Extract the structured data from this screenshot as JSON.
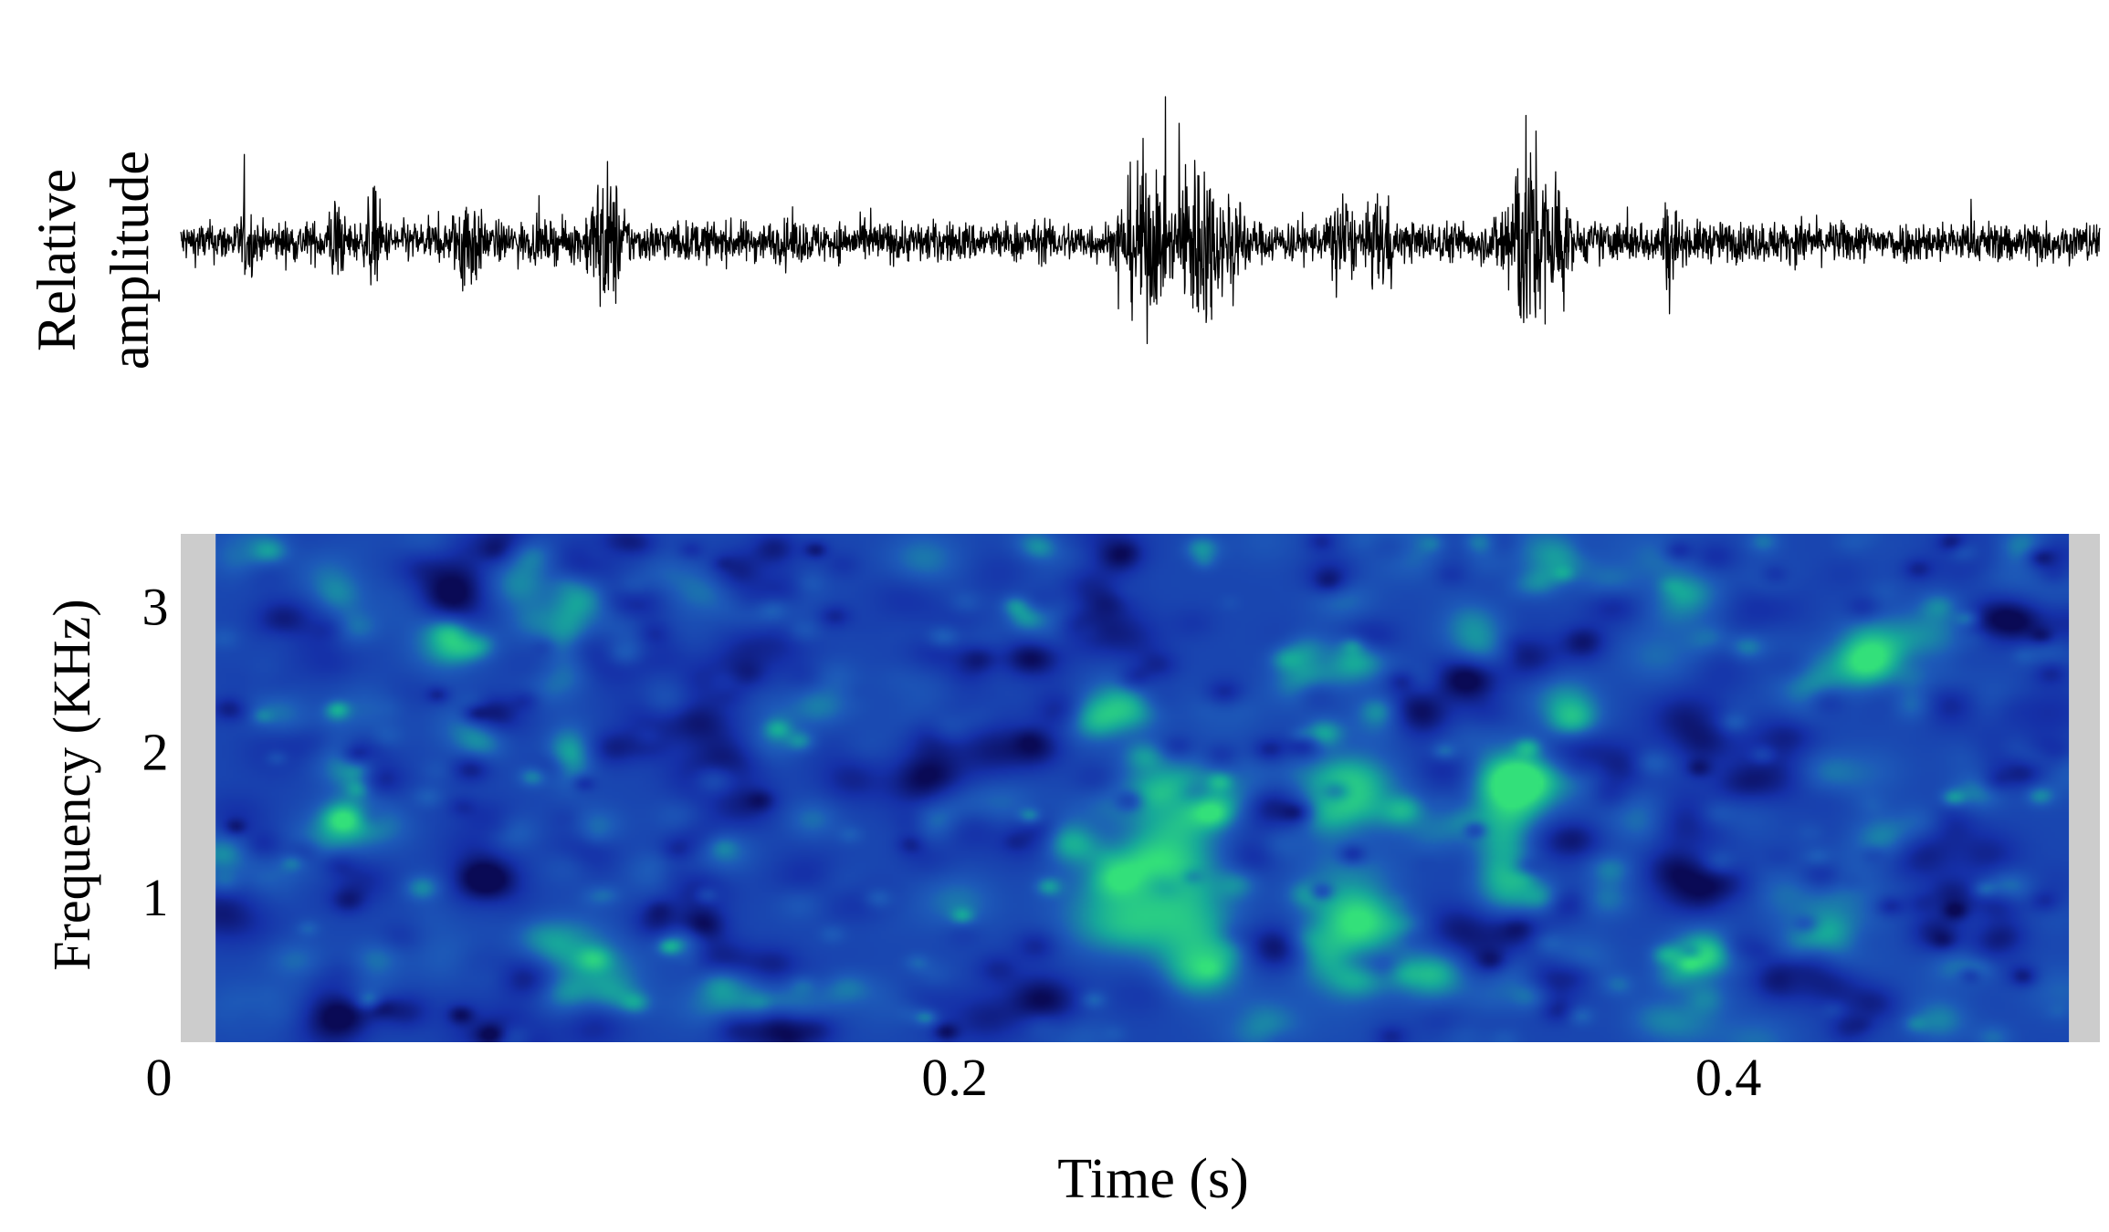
{
  "chart_data": [
    {
      "type": "line",
      "panel": "waveform",
      "ylabel_lines": [
        "Relative",
        "amplitude"
      ],
      "xlim": [
        0,
        0.496
      ],
      "ylim": [
        -1,
        1
      ],
      "axes_visible": false,
      "grid": false,
      "series": [
        {
          "color": "#000000",
          "envelope_baseline": 0.18,
          "events": [
            {
              "t": 0.017,
              "amp": 0.36,
              "width": 0.002
            },
            {
              "t": 0.04,
              "amp": 0.45,
              "width": 0.002
            },
            {
              "t": 0.05,
              "amp": 0.48,
              "width": 0.002
            },
            {
              "t": 0.074,
              "amp": 0.55,
              "width": 0.003
            },
            {
              "t": 0.11,
              "amp": 0.68,
              "width": 0.004
            },
            {
              "t": 0.158,
              "amp": 0.22,
              "width": 0.004
            },
            {
              "t": 0.249,
              "amp": 0.78,
              "width": 0.005
            },
            {
              "t": 0.263,
              "amp": 0.88,
              "width": 0.005
            },
            {
              "t": 0.272,
              "amp": 0.55,
              "width": 0.003
            },
            {
              "t": 0.3,
              "amp": 0.5,
              "width": 0.003
            },
            {
              "t": 0.31,
              "amp": 0.48,
              "width": 0.003
            },
            {
              "t": 0.348,
              "amp": 1.0,
              "width": 0.005
            },
            {
              "t": 0.355,
              "amp": 0.72,
              "width": 0.003
            },
            {
              "t": 0.385,
              "amp": 0.45,
              "width": 0.002
            },
            {
              "t": 0.42,
              "amp": 0.22,
              "width": 0.004
            },
            {
              "t": 0.48,
              "amp": 0.22,
              "width": 0.004
            }
          ]
        }
      ]
    },
    {
      "type": "heatmap",
      "panel": "spectrogram",
      "xlabel": "Time (s)",
      "ylabel": "Frequency (KHz)",
      "xlim": [
        0,
        0.496
      ],
      "ylim": [
        0,
        3.5
      ],
      "x_ticks": [
        0,
        0.2,
        0.4
      ],
      "x_tick_labels": [
        "0",
        "0.2",
        "0.4"
      ],
      "y_ticks": [
        1,
        2,
        3
      ],
      "y_tick_labels": [
        "1",
        "2",
        "3"
      ],
      "data_xlim": [
        0.009,
        0.488
      ],
      "padding_color": "#cccccc",
      "colormap": [
        "#0a0a55",
        "#1530a8",
        "#1d5ab8",
        "#17a89a",
        "#33e07a"
      ],
      "background_level": 0.38,
      "hotspots": [
        {
          "t": 0.1,
          "f": 1.97,
          "st": 0.004,
          "sf": 0.14,
          "level": 0.4
        },
        {
          "t": 0.1,
          "f": 2.8,
          "st": 0.004,
          "sf": 0.2,
          "level": 0.25
        },
        {
          "t": 0.066,
          "f": 2.8,
          "st": 0.006,
          "sf": 0.2,
          "level": 0.25
        },
        {
          "t": 0.15,
          "f": 0.25,
          "st": 0.014,
          "sf": 0.12,
          "level": 0.3
        },
        {
          "t": 0.24,
          "f": 0.9,
          "st": 0.01,
          "sf": 0.18,
          "level": 0.3
        },
        {
          "t": 0.258,
          "f": 1.7,
          "st": 0.012,
          "sf": 0.16,
          "level": 0.62
        },
        {
          "t": 0.256,
          "f": 1.25,
          "st": 0.008,
          "sf": 0.25,
          "level": 0.45
        },
        {
          "t": 0.262,
          "f": 0.75,
          "st": 0.008,
          "sf": 0.25,
          "level": 0.4
        },
        {
          "t": 0.3,
          "f": 1.75,
          "st": 0.01,
          "sf": 0.14,
          "level": 0.42
        },
        {
          "t": 0.3,
          "f": 0.85,
          "st": 0.008,
          "sf": 0.4,
          "level": 0.3
        },
        {
          "t": 0.345,
          "f": 1.8,
          "st": 0.008,
          "sf": 0.14,
          "level": 0.55
        },
        {
          "t": 0.343,
          "f": 1.2,
          "st": 0.006,
          "sf": 0.4,
          "level": 0.5
        },
        {
          "t": 0.43,
          "f": 0.8,
          "st": 0.01,
          "sf": 0.3,
          "level": 0.15
        }
      ]
    }
  ]
}
